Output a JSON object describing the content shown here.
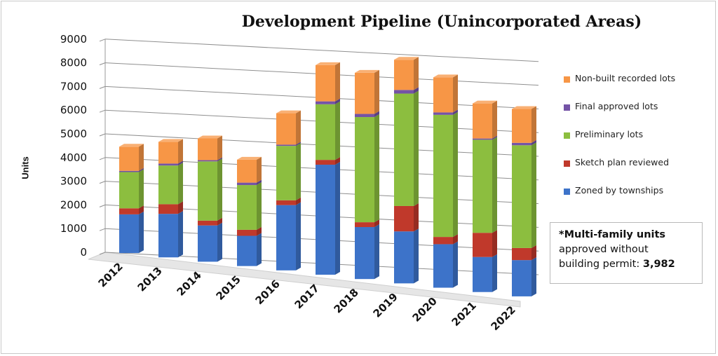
{
  "chart_data": {
    "type": "bar",
    "stacked": true,
    "style": "3d-column",
    "title": "Development Pipeline (Unincorporated Areas)",
    "ylabel": "Units",
    "xlabel": "",
    "ylim": [
      0,
      9000
    ],
    "yticks": [
      "0",
      "1000",
      "2000",
      "3000",
      "4000",
      "5000",
      "6000",
      "7000",
      "8000",
      "9000"
    ],
    "categories": [
      "2012",
      "2013",
      "2014",
      "2015",
      "2016",
      "2017",
      "2018",
      "2019",
      "2020",
      "2021",
      "2022"
    ],
    "grid": true,
    "legend_position": "right",
    "series": [
      {
        "name": "Zoned by townships",
        "color": "#3d73c9",
        "values": [
          1600,
          1800,
          1500,
          1250,
          2700,
          4550,
          2150,
          2150,
          1800,
          1450,
          1500
        ]
      },
      {
        "name": "Sketch plan reviewed",
        "color": "#c0392b",
        "values": [
          250,
          400,
          200,
          250,
          200,
          200,
          200,
          1050,
          300,
          1000,
          500
        ]
      },
      {
        "name": "Preliminary lots",
        "color": "#8cbe3f",
        "values": [
          1500,
          1600,
          2450,
          1850,
          2250,
          2300,
          4350,
          4650,
          5050,
          3850,
          4250
        ]
      },
      {
        "name": "Final approved lots",
        "color": "#7453a6",
        "values": [
          50,
          80,
          50,
          100,
          50,
          120,
          130,
          150,
          100,
          50,
          100
        ]
      },
      {
        "name": "Non-built recorded lots",
        "color": "#f79646",
        "values": [
          1000,
          900,
          900,
          950,
          1300,
          1500,
          1700,
          1250,
          1450,
          1450,
          1400
        ]
      }
    ]
  },
  "note": {
    "bold_prefix": "*Multi-family units",
    "text_line2": "approved without",
    "text_line3": "building permit: ",
    "bold_value": "3,982"
  }
}
